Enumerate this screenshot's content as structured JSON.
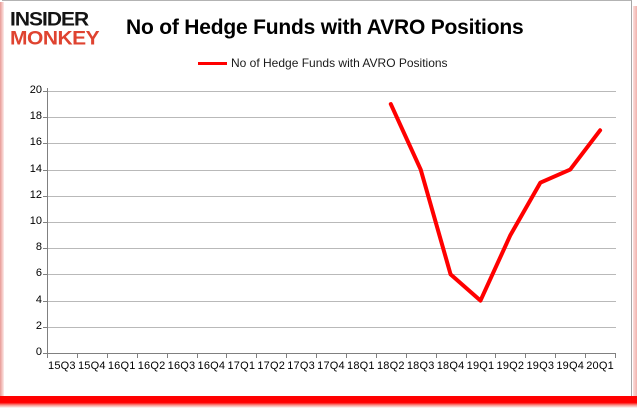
{
  "logo": {
    "line1": "INSIDER",
    "line2": "MONKEY"
  },
  "header": {
    "title": "No of Hedge Funds with AVRO Positions"
  },
  "legend": {
    "label": "No of Hedge Funds with AVRO Positions"
  },
  "chart_data": {
    "type": "line",
    "title": "No of Hedge Funds with AVRO Positions",
    "categories": [
      "15Q3",
      "15Q4",
      "16Q1",
      "16Q2",
      "16Q3",
      "16Q4",
      "17Q1",
      "17Q2",
      "17Q3",
      "17Q4",
      "18Q1",
      "18Q2",
      "18Q3",
      "18Q4",
      "19Q1",
      "19Q2",
      "19Q3",
      "19Q4",
      "20Q1"
    ],
    "series": [
      {
        "name": "No of Hedge Funds with AVRO Positions",
        "color": "#ff0000",
        "values": [
          null,
          null,
          null,
          null,
          null,
          null,
          null,
          null,
          null,
          null,
          null,
          19,
          14,
          6,
          4,
          9,
          13,
          14,
          17
        ]
      }
    ],
    "ylim": [
      0,
      20
    ],
    "yticks": [
      0,
      2,
      4,
      6,
      8,
      10,
      12,
      14,
      16,
      18,
      20
    ],
    "grid": "horizontal",
    "legend_position": "top-center",
    "line_width": 4
  },
  "colors": {
    "accent_red": "#ff0000",
    "logo_red": "#df4330",
    "logo_black": "#141414",
    "gridline": "#b9b9b9",
    "axis": "#808080",
    "text": "#000000"
  }
}
